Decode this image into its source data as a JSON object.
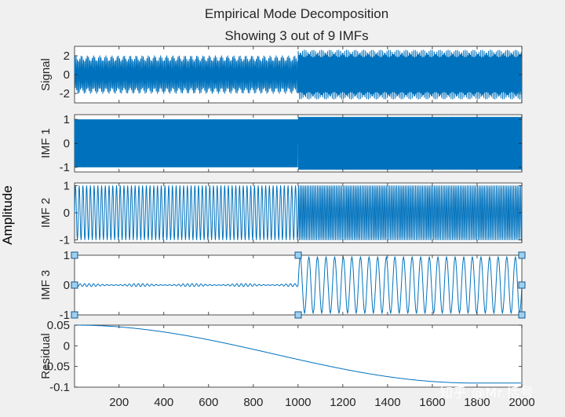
{
  "chart_data": {
    "type": "line",
    "title": "Empirical Mode Decomposition",
    "subtitle": "Showing 3 out of 9 IMFs",
    "ylabel_shared": "Amplitude",
    "xlim": [
      1,
      2000
    ],
    "xticks": [
      200,
      400,
      600,
      800,
      1000,
      1200,
      1400,
      1600,
      1800,
      2000
    ],
    "line_color": "#0072bd",
    "panels": [
      {
        "ylabel": "Signal",
        "ylim": [
          -3,
          3
        ],
        "yticks": [
          "2",
          "0",
          "-2"
        ],
        "ytick_values": [
          2,
          0,
          -2
        ],
        "segments": [
          {
            "x_range": [
              1,
              1000
            ],
            "cycles_per_100": 18,
            "amplitude": 2.0
          },
          {
            "x_range": [
              1000,
              2000
            ],
            "cycles_per_100": 26,
            "amplitude": 2.6
          }
        ]
      },
      {
        "ylabel": "IMF 1",
        "ylim": [
          -1.2,
          1.2
        ],
        "yticks": [
          "1",
          "0",
          "-1"
        ],
        "ytick_values": [
          1,
          0,
          -1
        ],
        "segments": [
          {
            "x_range": [
              1,
              1000
            ],
            "cycles_per_100": 45,
            "amplitude": 1.0
          },
          {
            "x_range": [
              1000,
              2000
            ],
            "cycles_per_100": 45,
            "amplitude": 1.1
          }
        ]
      },
      {
        "ylabel": "IMF 2",
        "ylim": [
          -1.1,
          1.1
        ],
        "yticks": [
          "1",
          "0",
          "-1"
        ],
        "ytick_values": [
          1,
          0,
          -1
        ],
        "segments": [
          {
            "x_range": [
              1,
              1000
            ],
            "cycles_per_100": 6,
            "amplitude": 1.0
          },
          {
            "x_range": [
              1000,
              2000
            ],
            "cycles_per_100": 13,
            "amplitude": 1.0
          }
        ]
      },
      {
        "ylabel": "IMF 3",
        "ylim": [
          -1,
          1
        ],
        "yticks": [
          "1",
          "0",
          "-1"
        ],
        "ytick_values": [
          1,
          0,
          -1
        ],
        "segments": [
          {
            "x_range": [
              1,
              1000
            ],
            "cycles_per_100": 5,
            "amplitude": 0.05
          },
          {
            "x_range": [
              1000,
              2000
            ],
            "cycles_per_100": 2.6,
            "amplitude": 0.95
          }
        ]
      },
      {
        "ylabel": "Residual",
        "ylim": [
          -0.1,
          0.05
        ],
        "yticks": [
          "0.05",
          "0",
          "-0.05",
          "-0.1"
        ],
        "ytick_values": [
          0.05,
          0,
          -0.05,
          -0.1
        ],
        "curve": {
          "type": "cosine-decay",
          "start": 0.05,
          "end": -0.09
        }
      }
    ]
  },
  "watermark": "知乎 @Mr.括号"
}
